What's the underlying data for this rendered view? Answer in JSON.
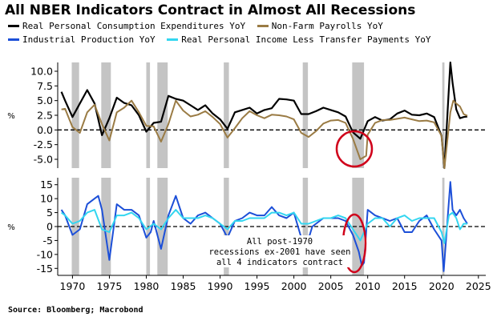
{
  "title": "All NBER Indicators Contract in Almost All Recessions",
  "source": "Source: Bloomberg; Macrobond",
  "colors": {
    "consumption": "#000000",
    "payrolls": "#9a7b44",
    "industrial": "#1c4fd8",
    "income": "#33d6f0",
    "recession": "#c4c4c4",
    "highlight": "#d0021b"
  },
  "chart_data": [
    {
      "type": "line",
      "ylabel": "%",
      "ylim": [
        -6.5,
        11.5
      ],
      "yticks": [
        "10.0",
        "7.5",
        "5.0",
        "2.5",
        "0.0",
        "-2.5",
        "-5.0"
      ],
      "series": [
        {
          "name": "Real Personal Consumption Expenditures YoY",
          "color": "#000000",
          "x": [
            1968.5,
            1969,
            1970,
            1971,
            1972,
            1973,
            1974,
            1975,
            1976,
            1977,
            1978,
            1979,
            1980,
            1981,
            1982,
            1983,
            1984,
            1985,
            1986,
            1987,
            1988,
            1989,
            1990,
            1991,
            1992,
            1993,
            1994,
            1995,
            1996,
            1997,
            1998,
            1999,
            2000,
            2001,
            2002,
            2003,
            2004,
            2005,
            2006,
            2007,
            2008,
            2009,
            2010,
            2011,
            2012,
            2013,
            2014,
            2015,
            2016,
            2017,
            2018,
            2019,
            2020,
            2020.4,
            2021.2,
            2021.5,
            2022,
            2022.5,
            2023,
            2023.5
          ],
          "y": [
            6.5,
            5.0,
            2.2,
            4.5,
            6.8,
            4.5,
            -0.9,
            2.0,
            5.5,
            4.6,
            4.2,
            2.5,
            -0.3,
            1.2,
            1.4,
            5.8,
            5.3,
            5.0,
            4.2,
            3.4,
            4.2,
            2.8,
            1.8,
            0.2,
            3.0,
            3.4,
            3.8,
            2.8,
            3.4,
            3.7,
            5.3,
            5.2,
            5.0,
            2.7,
            2.7,
            3.2,
            3.8,
            3.4,
            3.0,
            2.3,
            -0.4,
            -1.5,
            1.5,
            2.2,
            1.6,
            1.8,
            2.8,
            3.3,
            2.6,
            2.5,
            2.8,
            2.2,
            -1.0,
            -6.5,
            11.5,
            8.0,
            3.5,
            2.0,
            2.2,
            2.3
          ]
        },
        {
          "name": "Non-Farm Payrolls YoY",
          "color": "#9a7b44",
          "x": [
            1968.5,
            1969,
            1970,
            1971,
            1972,
            1973,
            1974,
            1975,
            1976,
            1977,
            1978,
            1979,
            1980,
            1981,
            1982,
            1983,
            1984,
            1985,
            1986,
            1987,
            1988,
            1989,
            1990,
            1991,
            1992,
            1993,
            1994,
            1995,
            1996,
            1997,
            1998,
            1999,
            2000,
            2001,
            2002,
            2003,
            2004,
            2005,
            2006,
            2007,
            2008,
            2009,
            2009.8,
            2010,
            2011,
            2012,
            2013,
            2014,
            2015,
            2016,
            2017,
            2018,
            2019,
            2020,
            2020.4,
            2021.2,
            2021.6,
            2022,
            2022.5,
            2023,
            2023.5
          ],
          "y": [
            3.5,
            3.6,
            0.5,
            -0.5,
            3.0,
            4.3,
            1.0,
            -1.8,
            3.0,
            3.8,
            5.0,
            3.0,
            0.7,
            0.6,
            -2.0,
            1.0,
            5.0,
            3.3,
            2.3,
            2.6,
            3.2,
            2.2,
            1.0,
            -1.3,
            0.3,
            2.0,
            3.2,
            2.5,
            2.0,
            2.6,
            2.5,
            2.3,
            1.8,
            -0.5,
            -1.2,
            -0.2,
            1.1,
            1.6,
            1.7,
            1.2,
            -1.5,
            -5.0,
            -4.4,
            -0.8,
            1.2,
            1.7,
            1.7,
            1.9,
            2.1,
            1.8,
            1.5,
            1.6,
            1.3,
            -1.0,
            -6.5,
            3.0,
            5.0,
            4.5,
            4.0,
            2.7,
            2.4
          ]
        }
      ]
    },
    {
      "type": "line",
      "ylabel": "%",
      "ylim": [
        -17.5,
        17.5
      ],
      "yticks": [
        "15",
        "10",
        "5",
        "0",
        "-5",
        "-10",
        "-15"
      ],
      "annotations": [
        "All post-1970",
        "recessions ex-2001 have seen",
        "all 4 indicators contract"
      ],
      "series": [
        {
          "name": "Industrial Production YoY",
          "color": "#1c4fd8",
          "x": [
            1968.5,
            1969,
            1970,
            1971,
            1972,
            1973,
            1973.5,
            1974,
            1975,
            1976,
            1977,
            1978,
            1979,
            1980,
            1980.6,
            1981,
            1982,
            1983,
            1984,
            1985,
            1986,
            1987,
            1988,
            1989,
            1990,
            1991,
            1992,
            1993,
            1994,
            1995,
            1996,
            1997,
            1998,
            1999,
            2000,
            2001,
            2001.8,
            2002.5,
            2003,
            2004,
            2005,
            2006,
            2007,
            2008,
            2008.8,
            2009.2,
            2009.5,
            2010,
            2011,
            2012,
            2013,
            2014,
            2015,
            2016,
            2017,
            2018,
            2019,
            2020,
            2020.3,
            2021.2,
            2021.5,
            2022,
            2022.5,
            2023,
            2023.5
          ],
          "y": [
            6,
            4,
            -3,
            -1,
            8,
            10,
            11,
            6,
            -12,
            8,
            6,
            6,
            4,
            -4,
            -2,
            2,
            -8,
            4,
            11,
            3,
            1,
            4,
            5,
            3,
            1,
            -4,
            2,
            3,
            5,
            4,
            4,
            7,
            4,
            3,
            5,
            -4,
            -6,
            0,
            1,
            3,
            3,
            3,
            2,
            -3,
            -9,
            -14,
            -13,
            6,
            4,
            3,
            2,
            3,
            -2,
            -2,
            2,
            4,
            -1,
            -5,
            -16,
            16,
            6,
            4,
            6,
            3,
            1
          ]
        },
        {
          "name": "Real Personal Income Less Transfer Payments YoY",
          "color": "#33d6f0",
          "x": [
            1968.5,
            1969,
            1970,
            1971,
            1972,
            1973,
            1974,
            1975,
            1976,
            1977,
            1978,
            1979,
            1980,
            1981,
            1982,
            1983,
            1984,
            1985,
            1986,
            1987,
            1988,
            1989,
            1990,
            1991,
            1992,
            1993,
            1994,
            1995,
            1996,
            1997,
            1998,
            1999,
            2000,
            2001,
            2002,
            2003,
            2004,
            2005,
            2006,
            2007,
            2008,
            2009,
            2010,
            2011,
            2012,
            2013,
            2014,
            2015,
            2016,
            2017,
            2018,
            2019,
            2020,
            2020.4,
            2021,
            2021.5,
            2022,
            2022.5,
            2023,
            2023.5
          ],
          "y": [
            5,
            4,
            1,
            2,
            5,
            6,
            -1,
            -2,
            4,
            4,
            5,
            3,
            -1,
            1,
            -1,
            3,
            6,
            3,
            3,
            3,
            4,
            3,
            1,
            -1,
            2,
            2,
            3,
            3,
            3,
            5,
            5,
            4,
            5,
            1,
            1,
            2,
            3,
            3,
            4,
            3,
            -1,
            -5,
            1,
            3,
            3,
            0,
            3,
            4,
            2,
            3,
            3,
            3,
            -2,
            -6,
            4,
            5,
            3,
            -1,
            1,
            1
          ]
        }
      ]
    }
  ],
  "x_axis": {
    "xlim": [
      1968,
      2026
    ],
    "ticks": [
      "1970",
      "1975",
      "1980",
      "1985",
      "1990",
      "1995",
      "2000",
      "2005",
      "2010",
      "2015",
      "2020",
      "2025"
    ],
    "recessions": [
      [
        1969.9,
        1970.9
      ],
      [
        1973.9,
        1975.2
      ],
      [
        1980.0,
        1980.5
      ],
      [
        1981.5,
        1982.9
      ],
      [
        1990.5,
        1991.2
      ],
      [
        2001.2,
        2001.9
      ],
      [
        2007.9,
        2009.5
      ],
      [
        2020.1,
        2020.4
      ]
    ]
  }
}
